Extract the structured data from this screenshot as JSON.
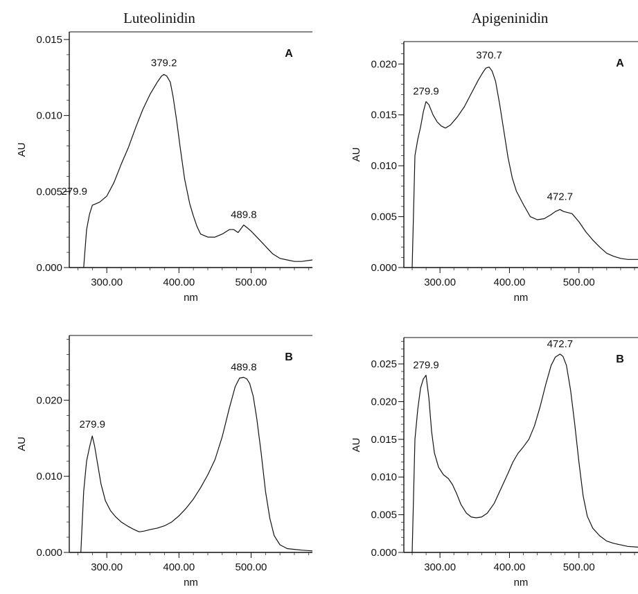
{
  "column_titles": {
    "left": "Luteolinidin",
    "right": "Apigeninidin"
  },
  "chart_data": [
    {
      "type": "line",
      "panel_letter": "A",
      "compound": "Luteolinidin",
      "xlabel": "nm",
      "ylabel": "AU",
      "xlim": [
        248,
        585
      ],
      "ylim": [
        0,
        0.0155
      ],
      "xticks": [
        300,
        400,
        500
      ],
      "xtick_labels": [
        "300.00",
        "400.00",
        "500.00"
      ],
      "yticks": [
        0,
        0.005,
        0.01,
        0.015
      ],
      "ytick_labels": [
        "0.000",
        "0.005",
        "0.010",
        "0.015"
      ],
      "series": [
        {
          "x": [
            268,
            272,
            276,
            280,
            285,
            290,
            295,
            300,
            310,
            320,
            330,
            340,
            350,
            360,
            370,
            376,
            379.2,
            383,
            388,
            392,
            397,
            402,
            408,
            415,
            420,
            425,
            430,
            440,
            450,
            460,
            470,
            476,
            482,
            489.8,
            495,
            500,
            510,
            520,
            530,
            540,
            550,
            560,
            570,
            585
          ],
          "y": [
            0,
            0.0025,
            0.0035,
            0.0041,
            0.0042,
            0.0043,
            0.0045,
            0.0047,
            0.0056,
            0.0068,
            0.0079,
            0.0092,
            0.0104,
            0.0114,
            0.0122,
            0.0126,
            0.0127,
            0.0126,
            0.0122,
            0.0112,
            0.0096,
            0.0078,
            0.0058,
            0.0042,
            0.0034,
            0.0027,
            0.0022,
            0.002,
            0.002,
            0.0022,
            0.0025,
            0.0025,
            0.0023,
            0.0028,
            0.0026,
            0.0024,
            0.0019,
            0.0014,
            0.0009,
            0.0006,
            0.0005,
            0.0004,
            0.0004,
            0.0005
          ]
        }
      ],
      "peak_labels": [
        {
          "x": 279.9,
          "y": 0.0041,
          "text": "279.9"
        },
        {
          "x": 379.2,
          "y": 0.0127,
          "text": "379.2"
        },
        {
          "x": 489.8,
          "y": 0.0028,
          "text": "489.8"
        }
      ]
    },
    {
      "type": "line",
      "panel_letter": "A",
      "compound": "Apigeninidin",
      "xlabel": "nm",
      "ylabel": "AU",
      "xlim": [
        248,
        585
      ],
      "ylim": [
        0,
        0.0222
      ],
      "xticks": [
        300,
        400,
        500
      ],
      "xtick_labels": [
        "300.00",
        "400.00",
        "500.00"
      ],
      "yticks": [
        0,
        0.005,
        0.01,
        0.015,
        0.02
      ],
      "ytick_labels": [
        "0.000",
        "0.005",
        "0.010",
        "0.015",
        "0.020"
      ],
      "series": [
        {
          "x": [
            260,
            264,
            268,
            272,
            276,
            279.9,
            284,
            290,
            296,
            302,
            308,
            315,
            325,
            335,
            345,
            355,
            362,
            366,
            370.7,
            375,
            380,
            386,
            392,
            398,
            404,
            410,
            420,
            430,
            440,
            450,
            460,
            466,
            472.7,
            478,
            484,
            490,
            500,
            510,
            520,
            530,
            540,
            550,
            560,
            570,
            585
          ],
          "y": [
            0,
            0.011,
            0.0126,
            0.0138,
            0.0153,
            0.0163,
            0.016,
            0.015,
            0.0143,
            0.0139,
            0.0137,
            0.014,
            0.0148,
            0.0158,
            0.0171,
            0.0184,
            0.0192,
            0.0196,
            0.0197,
            0.0193,
            0.0183,
            0.016,
            0.0134,
            0.0108,
            0.0088,
            0.0075,
            0.0062,
            0.005,
            0.0047,
            0.0048,
            0.0052,
            0.0055,
            0.0057,
            0.0055,
            0.0054,
            0.0053,
            0.0045,
            0.0035,
            0.0027,
            0.002,
            0.0014,
            0.0011,
            0.0009,
            0.0008,
            0.0008
          ]
        }
      ],
      "peak_labels": [
        {
          "x": 279.9,
          "y": 0.0163,
          "text": "279.9"
        },
        {
          "x": 370.7,
          "y": 0.0197,
          "text": "370.7"
        },
        {
          "x": 472.7,
          "y": 0.0057,
          "text": "472.7"
        }
      ]
    },
    {
      "type": "line",
      "panel_letter": "B",
      "compound": "Luteolinidin",
      "xlabel": "nm",
      "ylabel": "AU",
      "xlim": [
        248,
        585
      ],
      "ylim": [
        0,
        0.0285
      ],
      "xticks": [
        300,
        400,
        500
      ],
      "xtick_labels": [
        "300.00",
        "400.00",
        "500.00"
      ],
      "yticks": [
        0,
        0.01,
        0.02
      ],
      "ytick_labels": [
        "0.000",
        "0.010",
        "0.020"
      ],
      "series": [
        {
          "x": [
            264,
            268,
            272,
            276,
            279.9,
            283,
            288,
            292,
            298,
            305,
            312,
            320,
            330,
            338,
            345,
            352,
            360,
            370,
            380,
            390,
            400,
            410,
            420,
            430,
            440,
            450,
            460,
            470,
            478,
            484,
            489.8,
            494,
            498,
            503,
            508,
            514,
            520,
            526,
            532,
            540,
            550,
            560,
            570,
            585
          ],
          "y": [
            0,
            0.008,
            0.012,
            0.0138,
            0.0153,
            0.014,
            0.0112,
            0.009,
            0.0068,
            0.0055,
            0.0047,
            0.004,
            0.0034,
            0.003,
            0.0027,
            0.0028,
            0.003,
            0.0032,
            0.0035,
            0.004,
            0.0048,
            0.0058,
            0.007,
            0.0085,
            0.0102,
            0.0122,
            0.0152,
            0.019,
            0.0218,
            0.0229,
            0.023,
            0.0228,
            0.0222,
            0.0205,
            0.0175,
            0.013,
            0.008,
            0.0045,
            0.0022,
            0.001,
            0.0005,
            0.0004,
            0.0003,
            0.0002
          ]
        }
      ],
      "peak_labels": [
        {
          "x": 279.9,
          "y": 0.0153,
          "text": "279.9"
        },
        {
          "x": 489.8,
          "y": 0.023,
          "text": "489.8"
        }
      ]
    },
    {
      "type": "line",
      "panel_letter": "B",
      "compound": "Apigeninidin",
      "xlabel": "nm",
      "ylabel": "AU",
      "xlim": [
        248,
        585
      ],
      "ylim": [
        0,
        0.0285
      ],
      "xticks": [
        300,
        400,
        500
      ],
      "xtick_labels": [
        "300.00",
        "400.00",
        "500.00"
      ],
      "yticks": [
        0,
        0.005,
        0.01,
        0.015,
        0.02,
        0.025
      ],
      "ytick_labels": [
        "0.000",
        "0.005",
        "0.010",
        "0.015",
        "0.020",
        "0.025"
      ],
      "series": [
        {
          "x": [
            260,
            264,
            268,
            272,
            276,
            279.9,
            284,
            288,
            292,
            298,
            305,
            312,
            318,
            324,
            330,
            338,
            345,
            352,
            360,
            368,
            378,
            388,
            398,
            405,
            412,
            420,
            428,
            436,
            444,
            452,
            460,
            466,
            472.7,
            477,
            482,
            488,
            494,
            500,
            506,
            512,
            520,
            530,
            540,
            550,
            560,
            570,
            585
          ],
          "y": [
            0,
            0.015,
            0.019,
            0.0218,
            0.023,
            0.0235,
            0.0205,
            0.016,
            0.0132,
            0.0113,
            0.0103,
            0.0098,
            0.009,
            0.0078,
            0.0064,
            0.0052,
            0.0047,
            0.0046,
            0.0047,
            0.0052,
            0.0065,
            0.0085,
            0.0105,
            0.012,
            0.0131,
            0.014,
            0.015,
            0.0168,
            0.0193,
            0.0222,
            0.0248,
            0.0259,
            0.0263,
            0.026,
            0.0248,
            0.0215,
            0.017,
            0.012,
            0.0075,
            0.0048,
            0.0032,
            0.0022,
            0.0015,
            0.0012,
            0.001,
            0.0008,
            0.0007
          ]
        }
      ],
      "peak_labels": [
        {
          "x": 279.9,
          "y": 0.0235,
          "text": "279.9"
        },
        {
          "x": 472.7,
          "y": 0.0263,
          "text": "472.7"
        }
      ]
    }
  ]
}
